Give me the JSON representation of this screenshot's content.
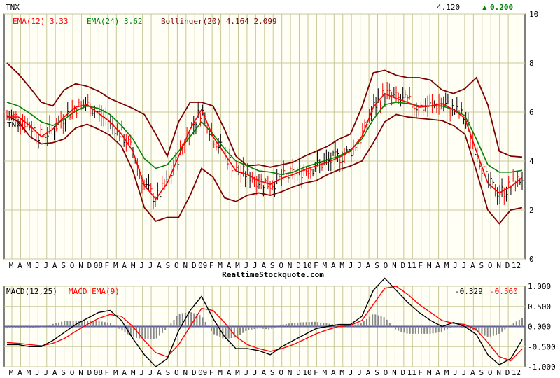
{
  "colors": {
    "background": "#ffffff",
    "plot_bg": "#fffff5",
    "grid_major": "#c8c89a",
    "grid_minor": "#e2e2c8",
    "price_bar": "#000000",
    "ema12": "#ff0000",
    "ema24": "#008000",
    "bollinger": "#800000",
    "macd_line": "#000000",
    "macd_signal": "#ff0000",
    "histogram": "#888888",
    "zero_line": "#5a5aa0",
    "up_arrow": "#008000"
  },
  "header": {
    "symbol": "TNX",
    "last": "4.120",
    "change_arrow": "▲",
    "change": "0.200",
    "ema12_label": "EMA(12)",
    "ema12_value": "3.33",
    "ema24_label": "EMA(24)",
    "ema24_value": "3.62",
    "bollinger_label": "Bollinger(20)",
    "bollinger_upper": "4.164",
    "bollinger_lower": "2.099"
  },
  "source_label": "RealtimeStockquote.com",
  "macd_header": {
    "macd_label": "MACD(12,25)",
    "signal_label": "MACD EMA(9)",
    "macd_value": "-0.329",
    "signal_value": "-0.560"
  },
  "chart_data": [
    {
      "type": "ohlc",
      "ylim": [
        0,
        10
      ],
      "yticks": [
        0,
        2,
        4,
        6,
        8,
        10
      ],
      "grid": true,
      "x_labels": [
        "M",
        "A",
        "M",
        "J",
        "J",
        "A",
        "S",
        "O",
        "N",
        "D",
        "08",
        "F",
        "M",
        "A",
        "M",
        "J",
        "J",
        "A",
        "S",
        "O",
        "N",
        "D",
        "09",
        "F",
        "M",
        "A",
        "M",
        "J",
        "J",
        "A",
        "S",
        "O",
        "N",
        "D",
        "10",
        "F",
        "M",
        "A",
        "M",
        "J",
        "J",
        "A",
        "S",
        "O",
        "N",
        "D",
        "11",
        "F",
        "M",
        "A",
        "M",
        "J",
        "J",
        "A",
        "S",
        "O",
        "N",
        "D",
        "12"
      ],
      "series": [
        {
          "name": "EMA(12)",
          "values": [
            5.8,
            5.8,
            5.45,
            5.0,
            5.3,
            5.8,
            6.2,
            6.3,
            5.95,
            5.6,
            5.1,
            4.4,
            3.0,
            2.45,
            3.1,
            4.2,
            5.3,
            6.1,
            5.0,
            4.3,
            3.6,
            3.45,
            3.2,
            3.05,
            3.3,
            3.45,
            3.65,
            3.8,
            3.95,
            4.15,
            4.4,
            5.0,
            6.2,
            6.75,
            6.55,
            6.4,
            6.2,
            6.25,
            6.35,
            6.1,
            5.75,
            4.4,
            3.1,
            2.7,
            2.95,
            3.33
          ]
        },
        {
          "name": "EMA(24)",
          "values": [
            6.4,
            6.25,
            5.95,
            5.6,
            5.45,
            5.7,
            6.05,
            6.25,
            6.15,
            5.9,
            5.45,
            4.9,
            4.1,
            3.7,
            3.85,
            4.4,
            5.0,
            5.6,
            5.1,
            4.5,
            4.0,
            3.8,
            3.6,
            3.55,
            3.45,
            3.55,
            3.75,
            3.9,
            4.05,
            4.2,
            4.45,
            4.9,
            5.7,
            6.3,
            6.4,
            6.35,
            6.25,
            6.25,
            6.25,
            6.1,
            5.85,
            4.9,
            3.85,
            3.55,
            3.55,
            3.62
          ]
        },
        {
          "name": "Bollinger(20)",
          "values": [
            8.0,
            7.55,
            7.0,
            6.4,
            6.25,
            6.9,
            7.15,
            7.05,
            6.85,
            6.55,
            6.35,
            6.15,
            5.9,
            5.1,
            4.2,
            5.6,
            6.4,
            6.4,
            6.25,
            5.3,
            4.2,
            3.8,
            3.85,
            3.75,
            3.85,
            3.95,
            4.2,
            4.4,
            4.6,
            4.9,
            5.1,
            6.2,
            7.6,
            7.7,
            7.5,
            7.4,
            7.4,
            7.3,
            6.9,
            6.75,
            6.95,
            7.4,
            6.3,
            4.4,
            4.2,
            4.164
          ]
        },
        {
          "name": "Bollinger(20)",
          "values": [
            5.85,
            5.6,
            5.0,
            4.7,
            4.75,
            4.9,
            5.35,
            5.5,
            5.3,
            5.05,
            4.6,
            3.6,
            2.1,
            1.55,
            1.7,
            1.7,
            2.6,
            3.7,
            3.35,
            2.5,
            2.35,
            2.6,
            2.7,
            2.6,
            2.75,
            2.95,
            3.1,
            3.2,
            3.45,
            3.65,
            3.8,
            4.0,
            4.75,
            5.6,
            5.9,
            5.8,
            5.75,
            5.7,
            5.65,
            5.45,
            5.1,
            3.6,
            2.0,
            1.45,
            2.0,
            2.099
          ]
        }
      ]
    },
    {
      "type": "line",
      "ylim": [
        -1.0,
        1.0
      ],
      "yticks": [
        1.0,
        0.5,
        0.0,
        -0.5,
        -1.0
      ],
      "grid": true,
      "series": [
        {
          "name": "MACD(12,25)",
          "values": [
            -0.45,
            -0.45,
            -0.5,
            -0.5,
            -0.35,
            -0.15,
            0.05,
            0.2,
            0.35,
            0.4,
            0.15,
            -0.3,
            -0.7,
            -1.0,
            -0.8,
            -0.1,
            0.4,
            0.75,
            0.2,
            -0.25,
            -0.55,
            -0.55,
            -0.6,
            -0.7,
            -0.5,
            -0.35,
            -0.2,
            -0.05,
            0.0,
            0.05,
            0.05,
            0.25,
            0.9,
            1.2,
            0.9,
            0.6,
            0.35,
            0.15,
            0.0,
            0.1,
            0.0,
            -0.2,
            -0.7,
            -0.95,
            -0.8,
            -0.329
          ]
        },
        {
          "name": "MACD EMA(9)",
          "values": [
            -0.4,
            -0.42,
            -0.45,
            -0.48,
            -0.42,
            -0.3,
            -0.12,
            0.05,
            0.2,
            0.3,
            0.25,
            0.0,
            -0.35,
            -0.65,
            -0.75,
            -0.45,
            0.0,
            0.45,
            0.4,
            0.1,
            -0.25,
            -0.45,
            -0.55,
            -0.62,
            -0.55,
            -0.45,
            -0.32,
            -0.18,
            -0.08,
            0.0,
            0.03,
            0.15,
            0.55,
            0.95,
            1.0,
            0.8,
            0.55,
            0.35,
            0.15,
            0.08,
            0.05,
            -0.08,
            -0.4,
            -0.75,
            -0.85,
            -0.56
          ]
        }
      ]
    }
  ]
}
